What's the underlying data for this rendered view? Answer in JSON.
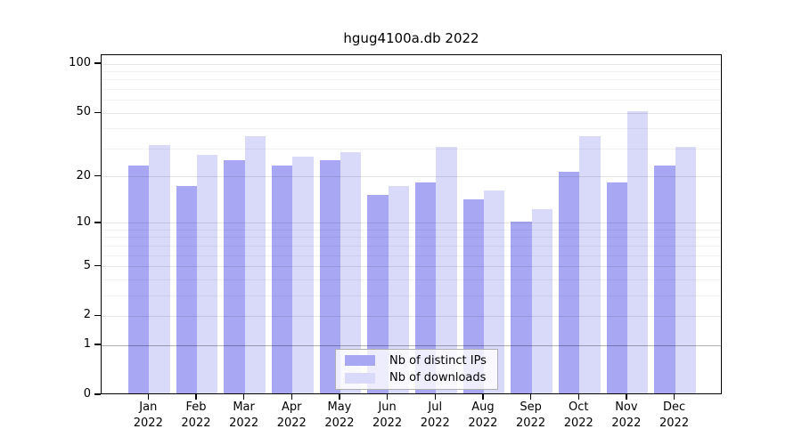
{
  "figure": {
    "title": "hgug4100a.db 2022"
  },
  "chart_data": {
    "type": "bar",
    "title": "hgug4100a.db 2022",
    "categories": [
      "Jan 2022",
      "Feb 2022",
      "Mar 2022",
      "Apr 2022",
      "May 2022",
      "Jun 2022",
      "Jul 2022",
      "Aug 2022",
      "Sep 2022",
      "Oct 2022",
      "Nov 2022",
      "Dec 2022"
    ],
    "x_tick_line1": [
      "Jan",
      "Feb",
      "Mar",
      "Apr",
      "May",
      "Jun",
      "Jul",
      "Aug",
      "Sep",
      "Oct",
      "Nov",
      "Dec"
    ],
    "x_tick_line2": "2022",
    "series": [
      {
        "name": "Nb of distinct IPs",
        "color": "#a7a7f4",
        "values": [
          23,
          17,
          25,
          23,
          25,
          15,
          18,
          14,
          10,
          21,
          18,
          23
        ]
      },
      {
        "name": "Nb of downloads",
        "color": "#d9d9f9",
        "values": [
          31,
          27,
          35,
          26,
          28,
          17,
          30,
          16,
          12,
          35,
          50,
          30
        ]
      }
    ],
    "y_axis": {
      "scale": "log10(value+1)",
      "tick_values": [
        0,
        1,
        2,
        5,
        10,
        20,
        50,
        100
      ],
      "minor_gridline_values": [
        3,
        4,
        6,
        7,
        8,
        9,
        30,
        40,
        60,
        70,
        80,
        90
      ],
      "ylim": [
        0,
        100
      ]
    },
    "grid": true,
    "legend_position": "lower center"
  },
  "colors": {
    "bar_dark": "#a7a7f4",
    "bar_light": "#d9d9f9",
    "axis": "#000000",
    "background": "#ffffff",
    "grid_minor": "rgba(0,0,0,0.05)",
    "grid_major": "rgba(0,0,0,0.10)",
    "grid_one_line": "rgba(0,0,0,0.30)"
  }
}
